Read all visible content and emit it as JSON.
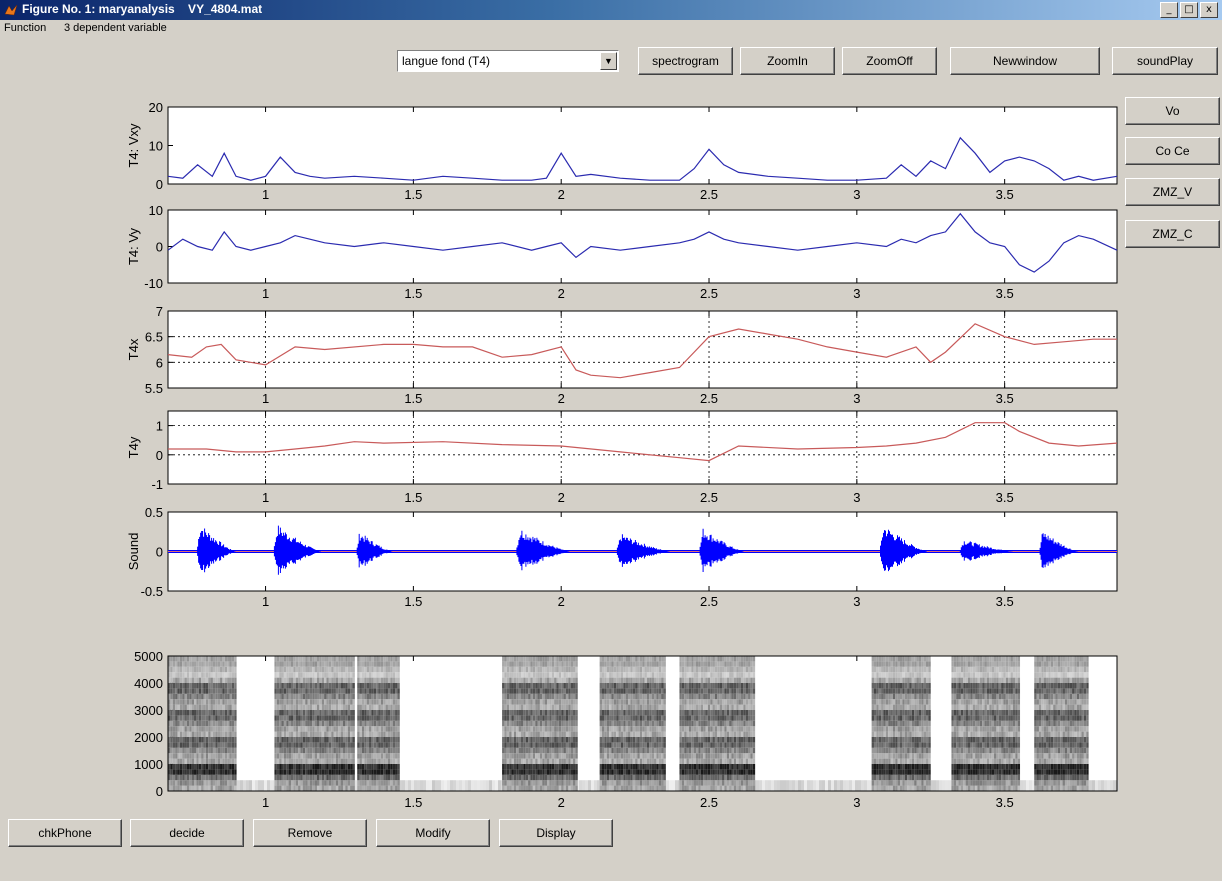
{
  "window": {
    "title": "Figure No. 1: maryanalysis    VY_4804.mat",
    "controls": [
      "_",
      "□",
      "x"
    ]
  },
  "menu": {
    "items": [
      "Function",
      "3 dependent variable"
    ]
  },
  "toolbar": {
    "select_value": "langue fond (T4)",
    "buttons": [
      "spectrogram",
      "ZoomIn",
      "ZoomOff",
      "Newwindow",
      "soundPlay"
    ]
  },
  "side_buttons": [
    "Vo",
    "Co Ce",
    "ZMZ_V",
    "ZMZ_C"
  ],
  "bottom_buttons": [
    "chkPhone",
    "decide",
    "Remove",
    "Modify",
    "Display"
  ],
  "colors": {
    "velocity": "#2b2bb0",
    "position": "#c85a5a",
    "sound": "#0000ff",
    "sound_baseline": "#e07070"
  },
  "chart_data": [
    {
      "type": "line",
      "ylabel": "T4: Vxy",
      "ylim": [
        0,
        20
      ],
      "yticks": [
        "20",
        "10",
        "0"
      ],
      "xlim": [
        0.67,
        3.88
      ],
      "xticks": [
        "1",
        "1.5",
        "2",
        "2.5",
        "3",
        "3.5"
      ],
      "grid": false,
      "series": [
        {
          "x": [
            0.67,
            0.72,
            0.77,
            0.82,
            0.86,
            0.9,
            0.95,
            1.0,
            1.05,
            1.1,
            1.15,
            1.2,
            1.3,
            1.4,
            1.5,
            1.6,
            1.7,
            1.8,
            1.9,
            1.95,
            2.0,
            2.05,
            2.1,
            2.2,
            2.3,
            2.4,
            2.45,
            2.5,
            2.55,
            2.6,
            2.7,
            2.8,
            2.9,
            3.0,
            3.1,
            3.15,
            3.2,
            3.25,
            3.3,
            3.35,
            3.4,
            3.45,
            3.5,
            3.55,
            3.6,
            3.65,
            3.7,
            3.75,
            3.8,
            3.88
          ],
          "y": [
            2,
            1.5,
            5,
            2,
            8,
            2,
            1,
            2,
            7,
            3,
            2,
            1.5,
            2,
            1.5,
            1,
            2,
            1.5,
            1,
            1,
            1.5,
            8,
            2,
            2.5,
            1.5,
            1,
            1,
            4,
            9,
            5,
            3,
            2,
            1.5,
            1,
            1,
            1.5,
            5,
            2,
            6,
            4,
            12,
            8,
            3,
            6,
            7,
            6,
            4,
            1,
            2,
            1,
            2
          ]
        }
      ]
    },
    {
      "type": "line",
      "ylabel": "T4: Vy",
      "ylim": [
        -10,
        10
      ],
      "yticks": [
        "10",
        "0",
        "-10"
      ],
      "xlim": [
        0.67,
        3.88
      ],
      "xticks": [
        "1",
        "1.5",
        "2",
        "2.5",
        "3",
        "3.5"
      ],
      "grid": false,
      "series": [
        {
          "x": [
            0.67,
            0.72,
            0.77,
            0.82,
            0.86,
            0.9,
            0.95,
            1.0,
            1.05,
            1.1,
            1.15,
            1.2,
            1.3,
            1.4,
            1.5,
            1.6,
            1.7,
            1.8,
            1.9,
            1.95,
            2.0,
            2.05,
            2.1,
            2.2,
            2.3,
            2.4,
            2.45,
            2.5,
            2.55,
            2.6,
            2.7,
            2.8,
            2.9,
            3.0,
            3.1,
            3.15,
            3.2,
            3.25,
            3.3,
            3.35,
            3.4,
            3.45,
            3.5,
            3.55,
            3.6,
            3.65,
            3.7,
            3.75,
            3.8,
            3.88
          ],
          "y": [
            -1,
            2,
            0,
            -1,
            4,
            0,
            -1,
            0,
            1,
            3,
            2,
            1,
            0,
            1,
            0,
            -1,
            0,
            1,
            -1,
            0,
            1,
            -3,
            0,
            -1,
            0,
            1,
            2,
            4,
            2,
            1,
            0,
            -1,
            0,
            1,
            0,
            2,
            1,
            3,
            4,
            9,
            4,
            1,
            0,
            -5,
            -7,
            -4,
            1,
            3,
            2,
            -1
          ]
        }
      ]
    },
    {
      "type": "line",
      "ylabel": "T4x",
      "ylim": [
        5.5,
        7
      ],
      "yticks": [
        "7",
        "6.5",
        "6",
        "5.5"
      ],
      "xlim": [
        0.67,
        3.88
      ],
      "xticks": [
        "1",
        "1.5",
        "2",
        "2.5",
        "3",
        "3.5"
      ],
      "grid": true,
      "series": [
        {
          "x": [
            0.67,
            0.75,
            0.8,
            0.85,
            0.9,
            1.0,
            1.1,
            1.2,
            1.4,
            1.5,
            1.6,
            1.7,
            1.8,
            1.9,
            2.0,
            2.05,
            2.1,
            2.2,
            2.3,
            2.4,
            2.5,
            2.6,
            2.7,
            2.8,
            2.9,
            3.0,
            3.1,
            3.2,
            3.25,
            3.3,
            3.4,
            3.5,
            3.6,
            3.7,
            3.8,
            3.88
          ],
          "y": [
            6.15,
            6.1,
            6.3,
            6.35,
            6.05,
            5.95,
            6.3,
            6.25,
            6.35,
            6.35,
            6.3,
            6.3,
            6.1,
            6.15,
            6.3,
            5.85,
            5.75,
            5.7,
            5.8,
            5.9,
            6.5,
            6.65,
            6.55,
            6.45,
            6.3,
            6.2,
            6.1,
            6.3,
            6.0,
            6.2,
            6.75,
            6.5,
            6.35,
            6.4,
            6.45,
            6.45
          ]
        }
      ]
    },
    {
      "type": "line",
      "ylabel": "T4y",
      "ylim": [
        -1,
        1.5
      ],
      "yticks": [
        "1",
        "0",
        "-1"
      ],
      "xlim": [
        0.67,
        3.88
      ],
      "xticks": [
        "1",
        "1.5",
        "2",
        "2.5",
        "3",
        "3.5"
      ],
      "grid": true,
      "series": [
        {
          "x": [
            0.67,
            0.8,
            0.9,
            1.0,
            1.1,
            1.2,
            1.3,
            1.4,
            1.6,
            1.8,
            2.0,
            2.2,
            2.4,
            2.5,
            2.6,
            2.8,
            3.0,
            3.1,
            3.2,
            3.3,
            3.4,
            3.5,
            3.55,
            3.65,
            3.75,
            3.88
          ],
          "y": [
            0.2,
            0.2,
            0.1,
            0.1,
            0.2,
            0.3,
            0.45,
            0.4,
            0.45,
            0.35,
            0.3,
            0.1,
            -0.1,
            -0.2,
            0.3,
            0.2,
            0.25,
            0.3,
            0.4,
            0.6,
            1.1,
            1.1,
            0.8,
            0.4,
            0.3,
            0.4
          ]
        }
      ]
    },
    {
      "type": "line",
      "ylabel": "Sound",
      "ylim": [
        -0.5,
        0.5
      ],
      "yticks": [
        "0.5",
        "0",
        "-0.5"
      ],
      "xlim": [
        0.67,
        3.88
      ],
      "xticks": [
        "1",
        "1.5",
        "2",
        "2.5",
        "3",
        "3.5"
      ],
      "grid": false,
      "bursts": [
        [
          0.77,
          0.9,
          0.4
        ],
        [
          1.03,
          1.19,
          0.38
        ],
        [
          1.31,
          1.43,
          0.28
        ],
        [
          1.85,
          2.03,
          0.33
        ],
        [
          2.19,
          2.37,
          0.25
        ],
        [
          2.47,
          2.62,
          0.33
        ],
        [
          3.08,
          3.24,
          0.38
        ],
        [
          3.35,
          3.53,
          0.17
        ],
        [
          3.62,
          3.75,
          0.3
        ]
      ]
    },
    {
      "type": "heatmap",
      "ylim": [
        0,
        5000
      ],
      "yticks": [
        "5000",
        "4000",
        "3000",
        "2000",
        "1000",
        "0"
      ],
      "xlim": [
        0.67,
        3.88
      ],
      "xticks": [
        "1",
        "1.5",
        "2",
        "2.5",
        "3",
        "3.5"
      ],
      "voiced_segments": [
        [
          0.67,
          0.9
        ],
        [
          1.03,
          1.3
        ],
        [
          1.31,
          1.45
        ],
        [
          1.8,
          2.05
        ],
        [
          2.13,
          2.35
        ],
        [
          2.4,
          2.65
        ],
        [
          3.05,
          3.25
        ],
        [
          3.32,
          3.55
        ],
        [
          3.6,
          3.78
        ]
      ]
    }
  ]
}
